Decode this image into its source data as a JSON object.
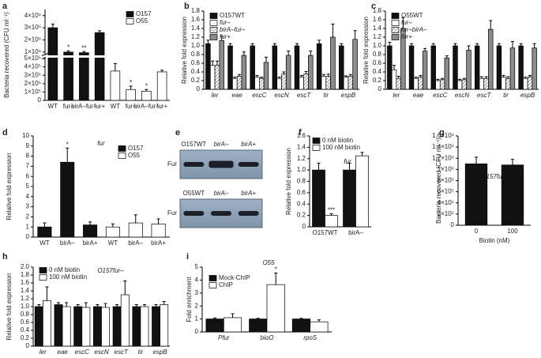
{
  "chart_data": [
    {
      "type": "bar",
      "panel": "a",
      "ylabel": "Bacteria recovered (CFU ml⁻¹)",
      "legend": "upper right",
      "categories": [
        "WT",
        "fur–",
        "birA–fur–",
        "fur+",
        "WT",
        "fur–",
        "birA–fur–",
        "fur+"
      ],
      "series": [
        {
          "name": "O157",
          "color": "#111111",
          "axis": "y2",
          "values": [
            3000000,
            1000000,
            950000,
            2600000,
            null,
            null,
            null,
            null
          ],
          "errors": [
            300000,
            100000,
            100000,
            150000,
            null,
            null,
            null,
            null
          ],
          "stars": [
            null,
            "*",
            "**",
            null,
            null,
            null,
            null,
            null
          ]
        },
        {
          "name": "O55",
          "color": "#ffffff",
          "values": [
            null,
            null,
            null,
            null,
            350000,
            130000,
            110000,
            340000
          ],
          "errors": [
            null,
            null,
            null,
            null,
            90000,
            40000,
            20000,
            20000
          ],
          "stars": [
            null,
            null,
            null,
            null,
            null,
            "*",
            "*",
            null
          ]
        }
      ],
      "ylim": [
        0,
        500000
      ],
      "yticks": [
        0,
        {
          "value": 100000,
          "label": "1×10⁵"
        },
        {
          "value": 200000,
          "label": "2×10⁵"
        },
        {
          "value": 300000,
          "label": "3×10⁵"
        },
        {
          "value": 400000,
          "label": "4×10⁵"
        },
        {
          "value": 500000,
          "label": "5×10⁵"
        }
      ],
      "y2lim": [
        800000,
        4500000
      ],
      "y2ticks": [
        {
          "value": 1000000,
          "label": "1×10⁶"
        },
        {
          "value": 2000000,
          "label": "2×10⁶"
        },
        {
          "value": 3000000,
          "label": "3×10⁶"
        },
        {
          "value": 4000000,
          "label": "4×10⁶"
        }
      ]
    },
    {
      "type": "bar",
      "panel": "b",
      "ylabel": "Relative fold expression",
      "legend": "upper left",
      "categories": [
        "ler",
        "eae",
        "escC",
        "escN",
        "escT",
        "tir",
        "espB"
      ],
      "series": [
        {
          "name": "O157WT",
          "color": "#111111",
          "values": [
            1.05,
            1.0,
            1.0,
            1.0,
            1.0,
            1.05,
            1.0
          ],
          "errors": [
            0.08,
            0.05,
            0.05,
            0.05,
            0.05,
            0.08,
            0.05
          ]
        },
        {
          "name": "fur–",
          "color": "#ffffff",
          "values": [
            0.55,
            0.25,
            0.28,
            0.25,
            0.28,
            0.3,
            0.28
          ],
          "errors": [
            0.1,
            0.03,
            0.04,
            0.03,
            0.04,
            0.04,
            0.03
          ]
        },
        {
          "name": "birA–fur–",
          "color": "#ffffff",
          "hatch": true,
          "values": [
            0.55,
            0.3,
            0.25,
            0.35,
            0.35,
            0.3,
            0.3
          ],
          "errors": [
            0.1,
            0.04,
            0.03,
            0.05,
            0.06,
            0.05,
            0.04
          ]
        },
        {
          "name": "fur+",
          "color": "#8c8c8c",
          "values": [
            1.12,
            0.78,
            0.62,
            0.78,
            0.78,
            1.2,
            1.15
          ],
          "errors": [
            0.1,
            0.08,
            0.12,
            0.1,
            0.1,
            0.3,
            0.2
          ]
        }
      ],
      "ylim": [
        0,
        1.8
      ],
      "yticks": [
        0,
        0.2,
        0.4,
        0.6,
        0.8,
        {
          "value": 1,
          "label": "1.0"
        },
        1.2,
        1.4,
        1.6,
        1.8
      ]
    },
    {
      "type": "bar",
      "panel": "c",
      "ylabel": "Relative fold expression",
      "legend": "upper left",
      "categories": [
        "ler",
        "eae",
        "escC",
        "escN",
        "escT",
        "tir",
        "espB"
      ],
      "series": [
        {
          "name": "O55WT",
          "color": "#111111",
          "values": [
            1.0,
            1.0,
            1.0,
            1.0,
            1.0,
            1.0,
            1.0
          ],
          "errors": [
            0.08,
            0.05,
            0.05,
            0.05,
            0.05,
            0.05,
            0.05
          ]
        },
        {
          "name": "fur–",
          "color": "#ffffff",
          "values": [
            0.45,
            0.25,
            0.2,
            0.2,
            0.25,
            0.28,
            0.25
          ],
          "errors": [
            0.1,
            0.03,
            0.03,
            0.03,
            0.04,
            0.04,
            0.03
          ]
        },
        {
          "name": "fur–birA–",
          "color": "#ffffff",
          "hatch": true,
          "values": [
            0.25,
            0.28,
            0.22,
            0.22,
            0.25,
            0.25,
            0.28
          ],
          "errors": [
            0.05,
            0.04,
            0.03,
            0.03,
            0.04,
            0.04,
            0.04
          ]
        },
        {
          "name": "fur+",
          "color": "#8c8c8c",
          "values": [
            1.4,
            0.88,
            0.72,
            0.9,
            1.38,
            0.95,
            0.95
          ],
          "errors": [
            0.25,
            0.06,
            0.05,
            0.1,
            0.2,
            0.15,
            0.1
          ]
        }
      ],
      "ylim": [
        0,
        1.8
      ],
      "yticks": [
        0,
        0.2,
        0.4,
        0.6,
        0.8,
        {
          "value": 1,
          "label": "1.0"
        },
        1.2,
        1.4,
        1.6,
        1.8
      ]
    },
    {
      "type": "bar",
      "panel": "d",
      "title": "fur",
      "ylabel": "Relative fold expression",
      "legend": "upper right",
      "categories": [
        "WT",
        "birA–",
        "birA+",
        "WT",
        "birA–",
        "birA+"
      ],
      "series": [
        {
          "name": "O157",
          "color": "#111111",
          "values": [
            1.0,
            7.4,
            1.2,
            null,
            null,
            null
          ],
          "errors": [
            0.4,
            1.4,
            0.3,
            null,
            null,
            null
          ],
          "stars": [
            null,
            "*",
            null,
            null,
            null,
            null
          ]
        },
        {
          "name": "O55",
          "color": "#ffffff",
          "values": [
            null,
            null,
            null,
            1.0,
            1.4,
            1.3
          ],
          "errors": [
            null,
            null,
            null,
            0.3,
            0.8,
            0.5
          ]
        }
      ],
      "ylim": [
        0,
        10
      ],
      "yticks": [
        0,
        1,
        2,
        3,
        4,
        5,
        6,
        7,
        8,
        9,
        10
      ]
    },
    {
      "type": "blot",
      "panel": "e",
      "blots": [
        {
          "lanes": [
            "O157WT",
            "birA–",
            "birA+"
          ],
          "label": "Fur"
        },
        {
          "lanes": [
            "O55WT",
            "birA–",
            "birA+"
          ],
          "label": "Fur"
        }
      ]
    },
    {
      "type": "bar",
      "panel": "f",
      "title": "fur",
      "ylabel": "Relative fold expression",
      "legend": "upper left",
      "categories": [
        "O157WT",
        "birA–"
      ],
      "series": [
        {
          "name": "0 nM biotin",
          "color": "#111111",
          "values": [
            1.0,
            1.0
          ],
          "errors": [
            0.12,
            0.12
          ]
        },
        {
          "name": "100 nM biotin",
          "color": "#ffffff",
          "values": [
            0.2,
            1.25
          ],
          "errors": [
            0.03,
            0.06
          ],
          "stars": [
            "***",
            null
          ]
        }
      ],
      "ylim": [
        0,
        1.6
      ],
      "yticks": [
        0,
        0.2,
        0.4,
        0.6,
        0.8,
        {
          "value": 1,
          "label": "1.0"
        },
        1.2,
        1.4,
        1.6
      ]
    },
    {
      "type": "bar",
      "panel": "g",
      "title": "O157fur–",
      "ylabel": "Bacteria recovered (CFU ml⁻¹)",
      "xlabel": "Biotin (nM)",
      "categories": [
        "0",
        "100"
      ],
      "series": [
        {
          "color": "#111111",
          "values": [
            1100000,
            1080000
          ],
          "errors": [
            120000,
            100000
          ]
        }
      ],
      "ylim": [
        0,
        1600000
      ],
      "yticks": [
        0,
        {
          "value": 200000,
          "label": "2×10⁵"
        },
        {
          "value": 400000,
          "label": "4×10⁵"
        },
        {
          "value": 600000,
          "label": "6×10⁵"
        },
        {
          "value": 800000,
          "label": "8×10⁵"
        },
        {
          "value": 1000000,
          "label": "1×10⁶"
        },
        {
          "value": 1200000,
          "label": "1.2×10⁶"
        },
        {
          "value": 1400000,
          "label": "1.4×10⁶"
        },
        {
          "value": 1600000,
          "label": "1.6×10⁶"
        }
      ]
    },
    {
      "type": "bar",
      "panel": "h",
      "title": "O157fur–",
      "ylabel": "Relative fold expression",
      "legend": "upper left",
      "categories": [
        "ler",
        "eae",
        "escC",
        "escN",
        "escT",
        "tir",
        "espB"
      ],
      "series": [
        {
          "name": "0 nM biotin",
          "color": "#111111",
          "values": [
            1.0,
            1.05,
            1.0,
            1.0,
            1.0,
            1.0,
            1.0
          ],
          "errors": [
            0.05,
            0.05,
            0.05,
            0.05,
            0.05,
            0.05,
            0.05
          ]
        },
        {
          "name": "100 nM biotin",
          "color": "#ffffff",
          "values": [
            1.15,
            1.0,
            0.98,
            0.98,
            1.3,
            1.0,
            1.05
          ],
          "errors": [
            0.35,
            0.1,
            0.12,
            0.1,
            0.35,
            0.05,
            0.08
          ]
        }
      ],
      "ylim": [
        0,
        2
      ],
      "yticks": [
        0,
        0.2,
        0.4,
        0.6,
        0.8,
        {
          "value": 1,
          "label": "1.0"
        },
        1.2,
        1.4,
        1.6,
        1.8,
        {
          "value": 2,
          "label": "2.0"
        }
      ]
    },
    {
      "type": "bar",
      "panel": "i",
      "title": "O55",
      "ylabel": "Fold enrichment",
      "legend": "upper left",
      "categories": [
        "Pfur",
        "bioO",
        "rpoS"
      ],
      "series": [
        {
          "name": "Mock-ChIP",
          "color": "#111111",
          "values": [
            1.0,
            1.0,
            1.0
          ],
          "errors": [
            0.08,
            0.05,
            0.05
          ]
        },
        {
          "name": "ChIP",
          "color": "#ffffff",
          "values": [
            1.1,
            3.65,
            0.78
          ],
          "errors": [
            0.3,
            0.9,
            0.15
          ],
          "stars": [
            null,
            "*",
            null
          ]
        }
      ],
      "ylim": [
        0,
        5
      ],
      "yticks": [
        0,
        1,
        2,
        3,
        4,
        5
      ]
    }
  ]
}
